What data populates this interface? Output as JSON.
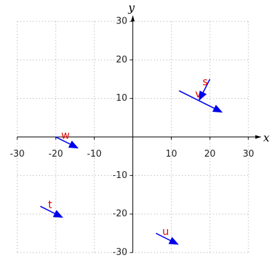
{
  "chart_data": {
    "type": "quiver",
    "x_label": "x",
    "y_label": "y",
    "xlim": [
      -30,
      30
    ],
    "ylim": [
      -30,
      30
    ],
    "xticks": [
      -30,
      -20,
      -10,
      10,
      20,
      30
    ],
    "yticks": [
      -30,
      -20,
      -10,
      10,
      20,
      30
    ],
    "grid": true,
    "color": "#0000ee",
    "label_color": "#e00000",
    "vectors": [
      {
        "name": "v",
        "x": 12,
        "y": 12,
        "dx": 11,
        "dy": -5.5
      },
      {
        "name": "s",
        "x": 20,
        "y": 15,
        "dx": -2.7,
        "dy": -5.3
      },
      {
        "name": "w",
        "x": -20,
        "y": 0,
        "dx": 5.6,
        "dy": -2.8
      },
      {
        "name": "t",
        "x": -24,
        "y": -18,
        "dx": 5.6,
        "dy": -2.8
      },
      {
        "name": "u",
        "x": 6,
        "y": -25,
        "dx": 5.6,
        "dy": -2.8
      }
    ]
  }
}
